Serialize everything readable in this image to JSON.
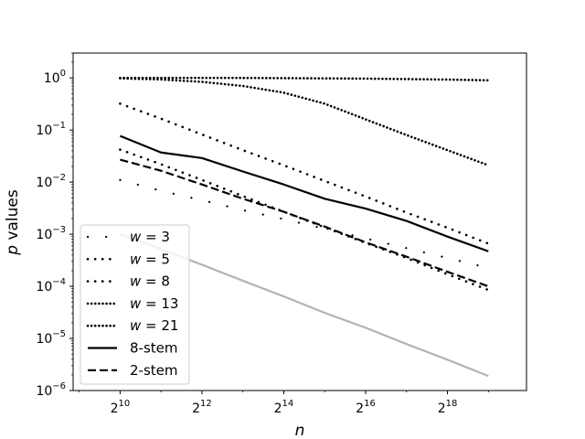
{
  "chart_data": {
    "type": "line",
    "xlabel": "n",
    "ylabel": "p values",
    "x_scale": "log2",
    "y_scale": "log10",
    "xlim": [
      462,
      1000000
    ],
    "ylim": [
      1e-06,
      3
    ],
    "x_ticks": [
      {
        "value": 1024,
        "base": "2",
        "exp": "10"
      },
      {
        "value": 4096,
        "base": "2",
        "exp": "12"
      },
      {
        "value": 16384,
        "base": "2",
        "exp": "14"
      },
      {
        "value": 65536,
        "base": "2",
        "exp": "16"
      },
      {
        "value": 262144,
        "base": "2",
        "exp": "18"
      }
    ],
    "y_ticks": [
      {
        "value": 1,
        "base": "10",
        "exp": "0"
      },
      {
        "value": 0.1,
        "base": "10",
        "exp": "−1"
      },
      {
        "value": 0.01,
        "base": "10",
        "exp": "−2"
      },
      {
        "value": 0.001,
        "base": "10",
        "exp": "−3"
      },
      {
        "value": 0.0001,
        "base": "10",
        "exp": "−4"
      },
      {
        "value": 1e-05,
        "base": "10",
        "exp": "−5"
      },
      {
        "value": 1e-06,
        "base": "10",
        "exp": "−6"
      }
    ],
    "legend_position": "lower-left",
    "x": [
      1024,
      2048,
      4096,
      8192,
      16384,
      32768,
      65536,
      131072,
      262144,
      524288
    ],
    "series": [
      {
        "name": "w = 3",
        "style": "sparse-dot",
        "color": "#000000",
        "values": [
          0.011,
          0.0068,
          0.0045,
          0.0029,
          0.00195,
          0.00127,
          0.00083,
          0.00054,
          0.00035,
          0.000225
        ]
      },
      {
        "name": "w = 5",
        "style": "dot",
        "color": "#000000",
        "values": [
          0.042,
          0.022,
          0.011,
          0.0054,
          0.0027,
          0.00135,
          0.00068,
          0.00035,
          0.00017,
          8.5e-05
        ]
      },
      {
        "name": "w = 8",
        "style": "dot",
        "color": "#000000",
        "values": [
          0.32,
          0.165,
          0.082,
          0.041,
          0.021,
          0.0105,
          0.0053,
          0.0026,
          0.00133,
          0.00066
        ]
      },
      {
        "name": "w = 13",
        "style": "dense-dot",
        "color": "#000000",
        "values": [
          0.98,
          0.93,
          0.84,
          0.7,
          0.52,
          0.32,
          0.16,
          0.08,
          0.041,
          0.021
        ]
      },
      {
        "name": "w = 21",
        "style": "dense-dot",
        "color": "#000000",
        "values": [
          1.0,
          1.0,
          1.0,
          1.0,
          0.99,
          0.98,
          0.97,
          0.95,
          0.93,
          0.9
        ]
      },
      {
        "name": "8-stem",
        "style": "solid",
        "color": "#000000",
        "values": [
          0.077,
          0.037,
          0.029,
          0.016,
          0.009,
          0.0048,
          0.0031,
          0.0018,
          0.0009,
          0.00047
        ]
      },
      {
        "name": "2-stem",
        "style": "dashed",
        "color": "#000000",
        "values": [
          0.027,
          0.0165,
          0.009,
          0.0048,
          0.0027,
          0.0014,
          0.0007,
          0.00037,
          0.00019,
          0.0001
        ]
      },
      {
        "style": "solid",
        "color": "#b3b3b3",
        "values": [
          0.001,
          0.00052,
          0.00026,
          0.000128,
          6.4e-05,
          3.1e-05,
          1.6e-05,
          7.8e-06,
          3.9e-06,
          1.9e-06
        ]
      }
    ]
  }
}
